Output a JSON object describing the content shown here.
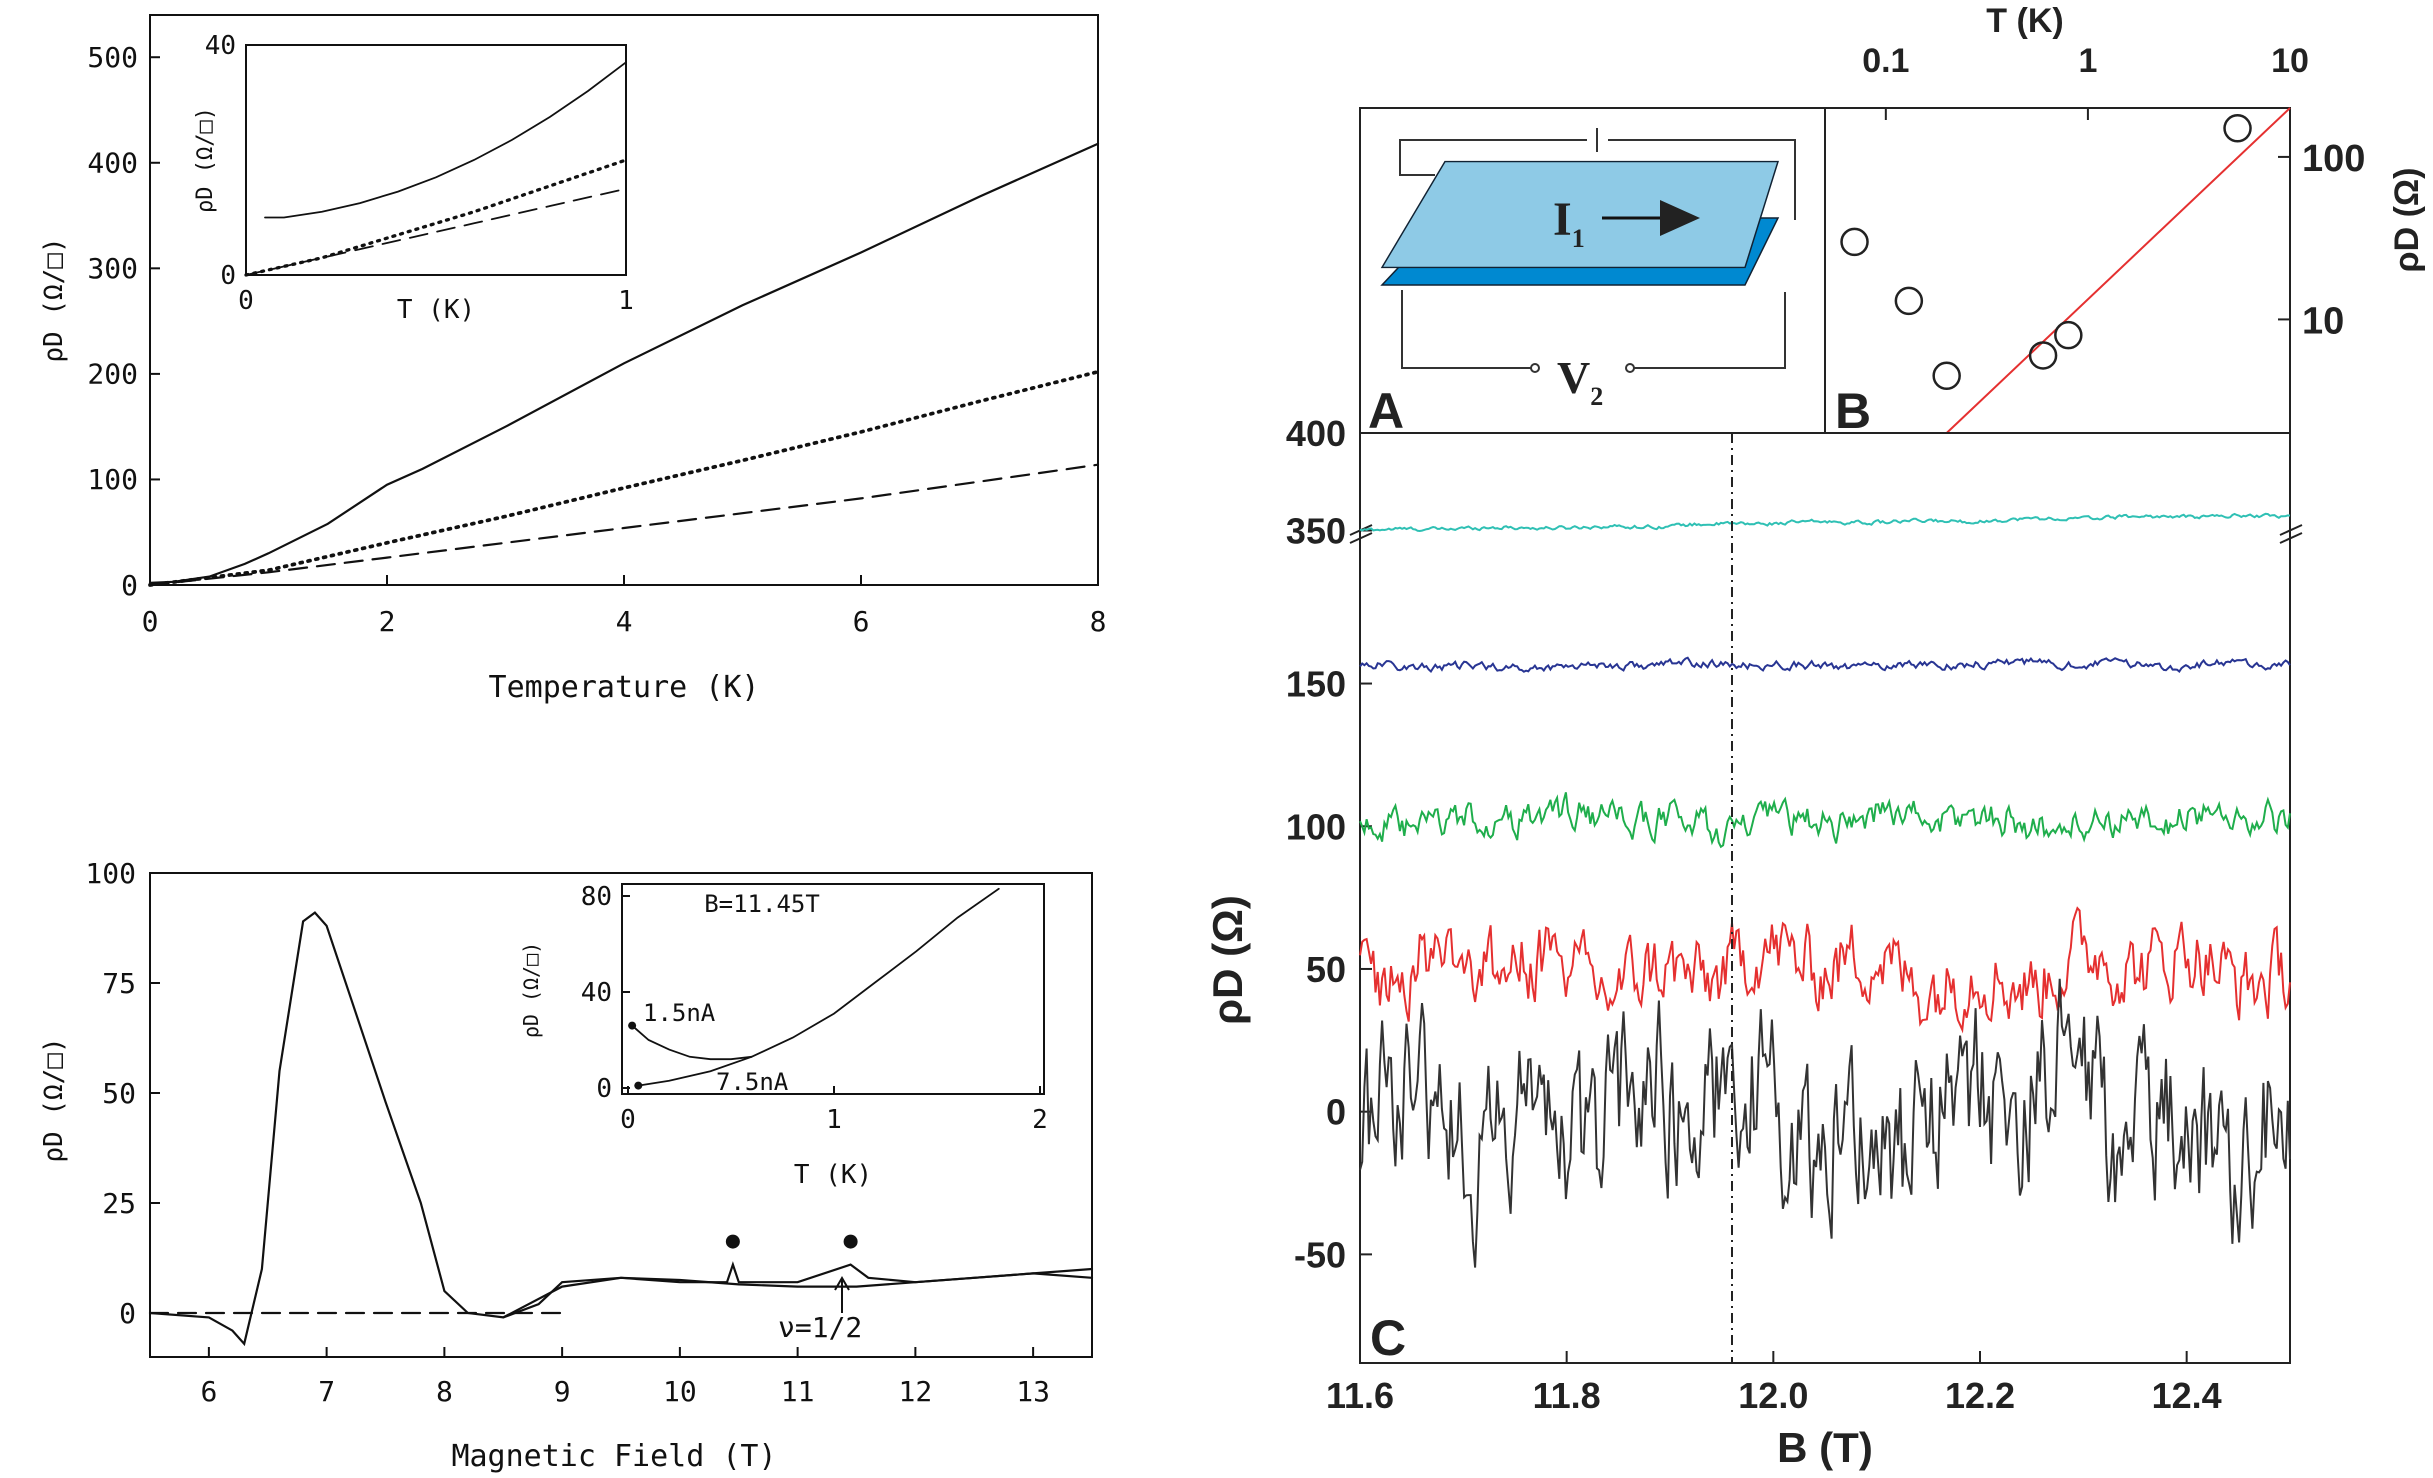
{
  "chart_data": [
    {
      "id": "top_left",
      "type": "line",
      "xlabel": "Temperature (K)",
      "ylabel": "ρD (Ω/□)",
      "xlim": [
        0,
        8
      ],
      "ylim": [
        0,
        540
      ],
      "xticks": [
        0,
        2,
        4,
        6,
        8
      ],
      "yticks": [
        0,
        100,
        200,
        300,
        400,
        500
      ],
      "series": [
        {
          "name": "solid",
          "style": "solid",
          "x": [
            0,
            0.2,
            0.5,
            0.8,
            1.0,
            1.5,
            2.0,
            2.3,
            3,
            4,
            5,
            6,
            7,
            8
          ],
          "y": [
            2,
            3,
            8,
            20,
            30,
            58,
            95,
            110,
            150,
            210,
            265,
            315,
            368,
            418
          ]
        },
        {
          "name": "dotted",
          "style": "dotted",
          "x": [
            0,
            1,
            2,
            3,
            4,
            5,
            6,
            7,
            8
          ],
          "y": [
            0,
            14,
            40,
            65,
            92,
            118,
            145,
            174,
            202
          ]
        },
        {
          "name": "dashed",
          "style": "dashed",
          "x": [
            0,
            1,
            2,
            3,
            4,
            5,
            6,
            7,
            8
          ],
          "y": [
            0,
            12,
            26,
            40,
            54,
            68,
            82,
            98,
            114
          ]
        }
      ],
      "inset": {
        "xlabel": "T (K)",
        "ylabel": "ρD (Ω/□)",
        "xlim": [
          0,
          1
        ],
        "ylim": [
          0,
          40
        ],
        "xticks": [
          0,
          1
        ],
        "yticks": [
          0,
          40
        ],
        "series": [
          {
            "name": "solid",
            "style": "solid",
            "x": [
              0.05,
              0.1,
              0.2,
              0.3,
              0.4,
              0.5,
              0.6,
              0.7,
              0.8,
              0.9,
              1.0
            ],
            "y": [
              10,
              10,
              11,
              12.5,
              14.5,
              17,
              20,
              23.5,
              27.5,
              32,
              37
            ]
          },
          {
            "name": "dotted",
            "style": "dotted",
            "x": [
              0,
              0.2,
              0.4,
              0.6,
              0.8,
              1.0
            ],
            "y": [
              0,
              3,
              7,
              11,
              15.5,
              20
            ]
          },
          {
            "name": "dashed",
            "style": "dashed",
            "x": [
              0,
              0.2,
              0.4,
              0.6,
              0.8,
              1.0
            ],
            "y": [
              0,
              3,
              6,
              9,
              12,
              15
            ]
          }
        ]
      }
    },
    {
      "id": "bottom_left",
      "type": "line",
      "xlabel": "Magnetic Field (T)",
      "ylabel": "ρD (Ω/□)",
      "xlim": [
        5.5,
        13.5
      ],
      "ylim": [
        -10,
        100
      ],
      "xticks": [
        6,
        7,
        8,
        9,
        10,
        11,
        12,
        13
      ],
      "yticks": [
        0,
        25,
        50,
        75,
        100
      ],
      "annotation": "ν=1/2",
      "annotation_x": 11.3,
      "peak_markers": [
        {
          "x": 10.45,
          "y": 11
        },
        {
          "x": 11.45,
          "y": 11
        }
      ],
      "series": [
        {
          "name": "trace",
          "style": "solid",
          "x": [
            5.5,
            6.0,
            6.2,
            6.3,
            6.45,
            6.6,
            6.8,
            6.9,
            7.0,
            7.2,
            7.5,
            7.8,
            8.0,
            8.2,
            8.5,
            8.8,
            9.0,
            9.5,
            10.0,
            10.4,
            10.45,
            10.5,
            11.0,
            11.45,
            11.6,
            12.0,
            12.5,
            13.0,
            13.5
          ],
          "y": [
            0,
            -1,
            -4,
            -7,
            10,
            55,
            89,
            91,
            88,
            72,
            48,
            25,
            5,
            0,
            -1,
            2,
            7,
            8,
            7,
            7,
            11,
            7,
            7,
            11,
            8,
            7,
            8,
            9,
            10
          ]
        },
        {
          "name": "smooth",
          "style": "solid",
          "x": [
            8.5,
            9,
            9.5,
            10,
            10.5,
            11,
            11.5,
            12,
            12.5,
            13,
            13.5
          ],
          "y": [
            -1,
            6,
            8,
            7.5,
            6.5,
            6,
            6,
            7,
            8,
            9,
            8
          ]
        },
        {
          "name": "zero-line",
          "style": "dashed",
          "x": [
            5.5,
            9.0
          ],
          "y": [
            0,
            0
          ]
        }
      ],
      "inset": {
        "title": "B=11.45T",
        "xlabel": "T (K)",
        "ylabel": "ρD (Ω/□)",
        "xlim": [
          0,
          2
        ],
        "ylim": [
          0,
          80
        ],
        "xticks": [
          0,
          1,
          2
        ],
        "yticks": [
          0,
          40,
          80
        ],
        "labels": [
          "1.5nA",
          "7.5nA"
        ],
        "series": [
          {
            "name": "1.5nA",
            "style": "solid",
            "x": [
              0.02,
              0.1,
              0.2,
              0.3,
              0.4,
              0.5,
              0.6
            ],
            "y": [
              26,
              20,
              16,
              13,
              12,
              12,
              13
            ]
          },
          {
            "name": "7.5nA",
            "style": "solid",
            "x": [
              0.05,
              0.2,
              0.4,
              0.6,
              0.8,
              1.0,
              1.2,
              1.4,
              1.6,
              1.8
            ],
            "y": [
              1,
              3,
              7,
              13,
              21,
              31,
              44,
              57,
              71,
              83
            ]
          }
        ]
      }
    },
    {
      "id": "panel_B",
      "type": "scatter",
      "label": "B",
      "xlabel": "T (K)",
      "ylabel": "ρD (Ω)",
      "xscale": "log",
      "yscale": "log",
      "xlim": [
        0.05,
        10
      ],
      "ylim": [
        2,
        200
      ],
      "xticks": [
        0.1,
        1,
        10
      ],
      "xtick_labels": [
        "0.1",
        "1",
        "10"
      ],
      "yticks": [
        10,
        100
      ],
      "ytick_labels": [
        "10",
        "100"
      ],
      "points": [
        {
          "x": 0.07,
          "y": 30
        },
        {
          "x": 0.13,
          "y": 13
        },
        {
          "x": 0.2,
          "y": 4.5
        },
        {
          "x": 0.6,
          "y": 6
        },
        {
          "x": 0.8,
          "y": 8
        },
        {
          "x": 5.5,
          "y": 150
        }
      ],
      "fit_line": {
        "x": [
          0.2,
          10
        ],
        "y": [
          2,
          200
        ],
        "color": "#e53030"
      }
    },
    {
      "id": "panel_C",
      "type": "line",
      "label": "C",
      "xlabel": "B (T)",
      "ylabel": "ρD (Ω)",
      "xlim": [
        11.6,
        12.5
      ],
      "ylim": [
        -80,
        400
      ],
      "xticks": [
        11.6,
        11.8,
        12.0,
        12.2,
        12.4
      ],
      "xtick_labels": [
        "11.6",
        "11.8",
        "12.0",
        "12.2",
        "12.4"
      ],
      "yticks": [
        -50,
        0,
        50,
        100,
        150,
        350,
        400
      ],
      "ytick_labels": [
        "-50",
        "0",
        "50",
        "100",
        "150",
        "350",
        "400"
      ],
      "axis_break": true,
      "vline_x": 11.96,
      "series": [
        {
          "name": "cyan",
          "color": "#2fc0b4",
          "base": 350,
          "amplitude": 1,
          "trend": 8
        },
        {
          "name": "navy",
          "color": "#283593",
          "base": 156,
          "amplitude": 1.5,
          "trend": 1
        },
        {
          "name": "green",
          "color": "#1fae4c",
          "base": 102,
          "amplitude": 6,
          "trend": 0
        },
        {
          "name": "red",
          "color": "#e53030",
          "base": 50,
          "amplitude": 14,
          "trend": 0
        },
        {
          "name": "black",
          "color": "#333333",
          "base": 0,
          "amplitude": 30,
          "trend": 0
        }
      ]
    }
  ],
  "schematic": {
    "label": "A",
    "current": "I",
    "current_sub": "1",
    "voltage": "V",
    "voltage_sub": "2",
    "colors": {
      "top_layer": "#8ecae6",
      "bottom_layer": "#0089d1"
    }
  }
}
